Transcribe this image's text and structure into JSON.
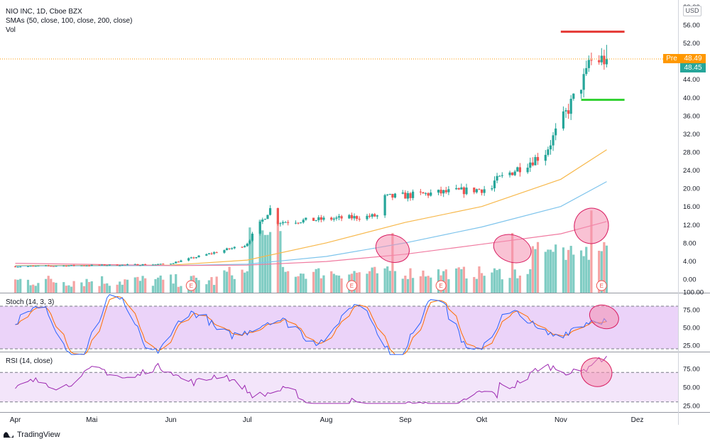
{
  "header": {
    "title": "NIO INC, 1D, Cboe BZX",
    "sma_label": "SMAs (50, close, 100, close, 200, close)",
    "vol_label": "Vol",
    "currency_button": "USD"
  },
  "price_badges": {
    "pre_label": "Pre",
    "pre_price": "48.49",
    "last_price": "48.45",
    "pre_color": "#ff9800",
    "last_color": "#26a69a"
  },
  "earnings_marker": "E",
  "footer": {
    "brand": "TradingView"
  },
  "colors": {
    "up": "#26a69a",
    "down": "#ef5350",
    "vol_up": "#7fccc3",
    "vol_down": "#f5a3a3",
    "sma50": "#f7b84b",
    "sma100": "#7ec4ec",
    "sma200": "#f07aa0",
    "stoch_k": "#2962ff",
    "stoch_d": "#ff6d00",
    "stoch_fill": "#e6c8f7",
    "rsi_line": "#9c27b0",
    "rsi_fill": "#f3e5fa",
    "annotation_fill": "#f48fb1",
    "annotation_stroke": "#d81b60",
    "resistance_line": "#e53935",
    "support_line": "#34d234"
  },
  "chart_data": [
    {
      "type": "candlestick",
      "title": "NIO INC, 1D, Cboe BZX",
      "y_ticks": [
        "0.00",
        "4.00",
        "8.00",
        "12.00",
        "16.00",
        "20.00",
        "24.00",
        "28.00",
        "32.00",
        "36.00",
        "40.00",
        "44.00",
        "48.00",
        "52.00",
        "56.00",
        "60.00"
      ],
      "ylim": [
        -2,
        60
      ],
      "x_ticks": [
        "Apr",
        "Mai",
        "Jun",
        "Jul",
        "Aug",
        "Sep",
        "Okt",
        "Nov",
        "Dez"
      ],
      "phases": [
        {
          "start": "2020-04-01",
          "end": "2020-05-31",
          "price_from": 2.8,
          "price_to": 3.3
        },
        {
          "start": "2020-06-01",
          "end": "2020-06-30",
          "price_from": 3.5,
          "price_to": 7.5
        },
        {
          "start": "2020-07-01",
          "end": "2020-07-10",
          "price_from": 8.0,
          "price_to": 15.5
        },
        {
          "start": "2020-07-11",
          "end": "2020-08-23",
          "price_from": 12.5,
          "price_to": 14.0
        },
        {
          "start": "2020-08-24",
          "end": "2020-10-05",
          "price_from": 18.0,
          "price_to": 20.0
        },
        {
          "start": "2020-10-06",
          "end": "2020-10-25",
          "price_from": 21.5,
          "price_to": 27.5
        },
        {
          "start": "2020-10-26",
          "end": "2020-11-11",
          "price_from": 28.0,
          "price_to": 45.0
        },
        {
          "start": "2020-11-12",
          "end": "2020-11-19",
          "price_from": 48.0,
          "price_to": 48.45
        }
      ],
      "last_close": 48.45,
      "pre_market": 48.49,
      "sma_series": [
        {
          "name": "SMA 50",
          "points": [
            [
              "2020-04-01",
              3.0
            ],
            [
              "2020-06-01",
              3.1
            ],
            [
              "2020-07-01",
              4.2
            ],
            [
              "2020-08-01",
              8.0
            ],
            [
              "2020-09-01",
              12.5
            ],
            [
              "2020-10-01",
              16.0
            ],
            [
              "2020-11-01",
              22.0
            ],
            [
              "2020-11-19",
              28.5
            ]
          ]
        },
        {
          "name": "SMA 100",
          "points": [
            [
              "2020-04-01",
              2.9
            ],
            [
              "2020-06-01",
              3.0
            ],
            [
              "2020-07-01",
              3.3
            ],
            [
              "2020-08-01",
              5.0
            ],
            [
              "2020-09-01",
              8.0
            ],
            [
              "2020-10-01",
              11.5
            ],
            [
              "2020-11-01",
              16.0
            ],
            [
              "2020-11-19",
              21.5
            ]
          ]
        },
        {
          "name": "SMA 200",
          "points": [
            [
              "2020-04-01",
              3.5
            ],
            [
              "2020-06-01",
              3.0
            ],
            [
              "2020-07-01",
              3.1
            ],
            [
              "2020-08-01",
              3.9
            ],
            [
              "2020-09-01",
              5.5
            ],
            [
              "2020-10-01",
              7.7
            ],
            [
              "2020-11-01",
              10.0
            ],
            [
              "2020-11-19",
              12.7
            ]
          ]
        }
      ],
      "levels": [
        {
          "price": 54.5,
          "from": "2020-11-01",
          "to": "2020-11-26",
          "color": "#e53935"
        },
        {
          "price": 39.5,
          "from": "2020-11-09",
          "to": "2020-11-26",
          "color": "#34d234"
        }
      ],
      "earnings_dates": [
        "2020-06-09",
        "2020-08-11",
        "2020-09-15",
        "2020-11-17"
      ],
      "volume_highlights": [
        "2020-08-27",
        "2020-10-13",
        "2020-11-13"
      ]
    },
    {
      "type": "line",
      "title": "Stoch (14, 3, 3)",
      "y_ticks": [
        "25.00",
        "50.00",
        "75.00",
        "100.00"
      ],
      "ylim": [
        15,
        100
      ],
      "bands": [
        20,
        80
      ],
      "annotation_date": "2020-11-18"
    },
    {
      "type": "line",
      "title": "RSI (14, close)",
      "y_ticks": [
        "25.00",
        "50.00",
        "75.00"
      ],
      "ylim": [
        20,
        95
      ],
      "bands": [
        30,
        70
      ],
      "annotation_date": "2020-11-15"
    }
  ]
}
